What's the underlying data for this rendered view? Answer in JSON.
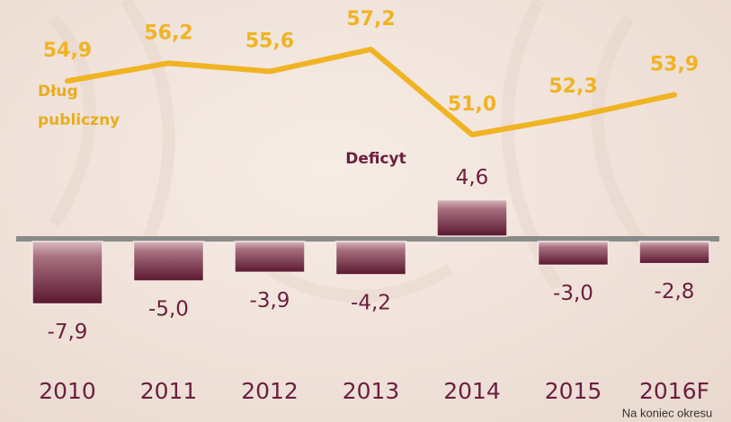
{
  "chart_data": {
    "type": "combo",
    "categories": [
      "2010",
      "2011",
      "2012",
      "2013",
      "2014",
      "2015",
      "2016F"
    ],
    "series": [
      {
        "name": "Dług publiczny",
        "type": "line",
        "color": "#f0b323",
        "values": [
          54.9,
          56.2,
          55.6,
          57.2,
          51.0,
          52.3,
          53.9
        ],
        "value_labels": [
          "54,9",
          "56,2",
          "55,6",
          "57,2",
          "51,0",
          "52,3",
          "53,9"
        ]
      },
      {
        "name": "Deficyt",
        "type": "bar",
        "color": "#6b1f3f",
        "values": [
          -7.9,
          -5.0,
          -3.9,
          -4.2,
          4.6,
          -3.0,
          -2.8
        ],
        "value_labels": [
          "-7,9",
          "-5,0",
          "-3,9",
          "-4,2",
          "4,6",
          "-3,0",
          "-2,8"
        ]
      }
    ],
    "note": "Na koniec okresu"
  }
}
